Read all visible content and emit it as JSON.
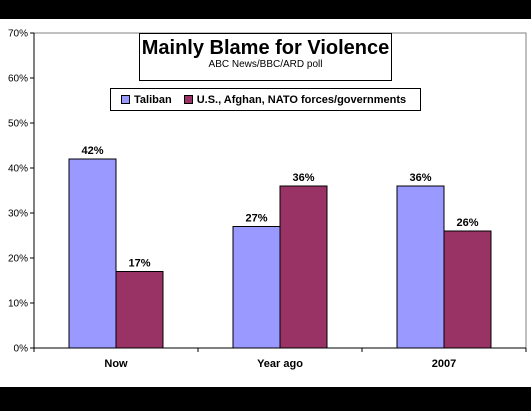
{
  "chart_data": {
    "type": "bar",
    "title": "Mainly Blame for Violence",
    "subtitle": "ABC News/BBC/ARD poll",
    "categories": [
      "Now",
      "Year ago",
      "2007"
    ],
    "series": [
      {
        "name": "Taliban",
        "values": [
          42,
          27,
          36
        ],
        "color": "#9999ff"
      },
      {
        "name": "U.S., Afghan, NATO forces/governments",
        "values": [
          17,
          36,
          26
        ],
        "color": "#993366"
      }
    ],
    "data_labels": [
      [
        "42%",
        "27%",
        "36%"
      ],
      [
        "17%",
        "36%",
        "26%"
      ]
    ],
    "ylim": [
      0,
      70
    ],
    "yticks": [
      "0%",
      "10%",
      "20%",
      "30%",
      "40%",
      "50%",
      "60%",
      "70%"
    ],
    "grid": false,
    "legend_position": "top",
    "xlabel": "",
    "ylabel": ""
  }
}
